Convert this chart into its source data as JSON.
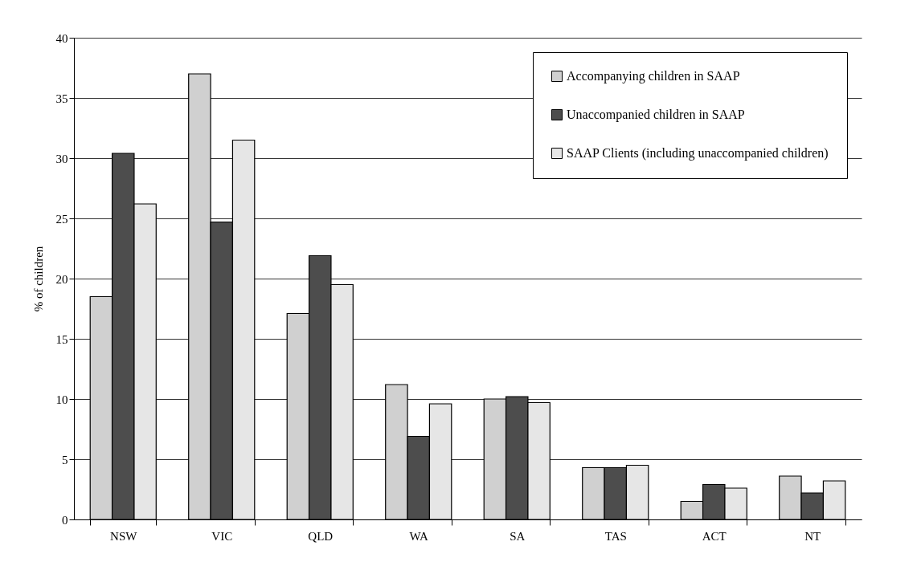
{
  "chart_data": {
    "type": "bar",
    "ylabel": "% of children",
    "categories": [
      "NSW",
      "VIC",
      "QLD",
      "WA",
      "SA",
      "TAS",
      "ACT",
      "NT"
    ],
    "series": [
      {
        "name": "Accompanying children in SAAP",
        "color": "#d0d0d0",
        "values": [
          18.5,
          37.0,
          17.1,
          11.2,
          10.0,
          4.3,
          1.5,
          3.6
        ]
      },
      {
        "name": "Unaccompanied children in SAAP",
        "color": "#4d4d4d",
        "values": [
          30.4,
          24.7,
          21.9,
          6.9,
          10.2,
          4.3,
          2.9,
          2.2
        ]
      },
      {
        "name": "SAAP Clients (including unaccompanied children)",
        "color": "#e6e6e6",
        "values": [
          26.2,
          31.5,
          19.5,
          9.6,
          9.7,
          4.5,
          2.6,
          3.2
        ]
      }
    ],
    "ylim": [
      0,
      40
    ],
    "yticks": [
      0,
      5,
      10,
      15,
      20,
      25,
      30,
      35,
      40
    ],
    "grid": "y",
    "legend": "top right"
  }
}
